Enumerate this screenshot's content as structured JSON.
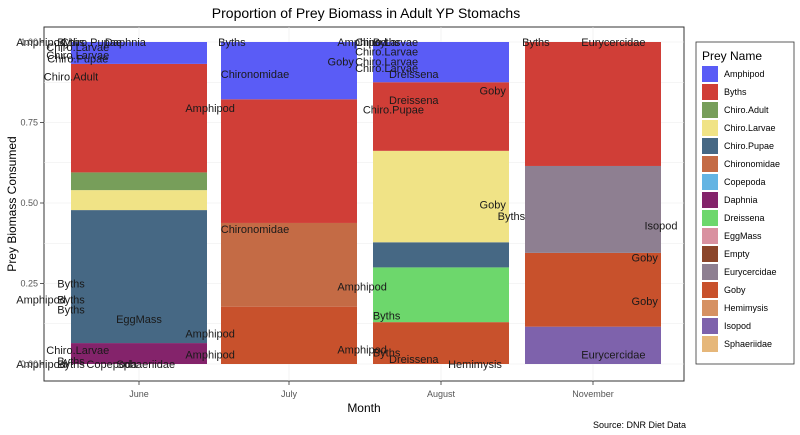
{
  "chart_data": {
    "type": "bar",
    "stacked": true,
    "title": "Proportion of Prey Biomass in Adult YP Stomachs",
    "xlabel": "Month",
    "ylabel": "Prey Biomass Consumed",
    "ylim": [
      0,
      1
    ],
    "yticks": [
      "0.00",
      "0.25",
      "0.50",
      "0.75",
      "1.00"
    ],
    "categories": [
      "June",
      "July",
      "August",
      "November"
    ],
    "legend_title": "Prey Name",
    "legend_position": "right",
    "caption": "Source: DNR Diet Data",
    "prey": [
      {
        "name": "Amphipod",
        "color": "#5A5CF6"
      },
      {
        "name": "Byths",
        "color": "#D03E37"
      },
      {
        "name": "Chiro.Adult",
        "color": "#779E5A"
      },
      {
        "name": "Chiro.Larvae",
        "color": "#F0E386"
      },
      {
        "name": "Chiro.Pupae",
        "color": "#466884"
      },
      {
        "name": "Chironomidae",
        "color": "#C46B45"
      },
      {
        "name": "Copepoda",
        "color": "#64B4E3"
      },
      {
        "name": "Daphnia",
        "color": "#84236B"
      },
      {
        "name": "Dreissena",
        "color": "#6DD76C"
      },
      {
        "name": "EggMass",
        "color": "#D991A0"
      },
      {
        "name": "Empty",
        "color": "#8B452A"
      },
      {
        "name": "Eurycercidae",
        "color": "#8E7F91"
      },
      {
        "name": "Goby",
        "color": "#C8512C"
      },
      {
        "name": "Hemimysis",
        "color": "#D69163"
      },
      {
        "name": "Isopod",
        "color": "#7E62AC"
      },
      {
        "name": "Sphaeriidae",
        "color": "#E6B77A"
      }
    ],
    "stacks": [
      {
        "month": "June",
        "segments": [
          {
            "prey": "Daphnia",
            "from": 0.0,
            "to": 0.065
          },
          {
            "prey": "Chiro.Pupae",
            "from": 0.065,
            "to": 0.478
          },
          {
            "prey": "Chiro.Larvae",
            "from": 0.478,
            "to": 0.54
          },
          {
            "prey": "Chiro.Adult",
            "from": 0.54,
            "to": 0.595
          },
          {
            "prey": "Byths",
            "from": 0.595,
            "to": 0.932
          },
          {
            "prey": "Amphipod",
            "from": 0.932,
            "to": 1.0
          }
        ]
      },
      {
        "month": "July",
        "segments": [
          {
            "prey": "Goby",
            "from": 0.0,
            "to": 0.178
          },
          {
            "prey": "Chironomidae",
            "from": 0.178,
            "to": 0.438
          },
          {
            "prey": "Byths",
            "from": 0.438,
            "to": 0.822
          },
          {
            "prey": "Amphipod",
            "from": 0.822,
            "to": 1.0
          }
        ]
      },
      {
        "month": "August",
        "segments": [
          {
            "prey": "Goby",
            "from": 0.0,
            "to": 0.13
          },
          {
            "prey": "Dreissena",
            "from": 0.13,
            "to": 0.3
          },
          {
            "prey": "Chiro.Pupae",
            "from": 0.3,
            "to": 0.378
          },
          {
            "prey": "Chiro.Larvae",
            "from": 0.378,
            "to": 0.662
          },
          {
            "prey": "Byths",
            "from": 0.662,
            "to": 0.875
          },
          {
            "prey": "Amphipod",
            "from": 0.875,
            "to": 1.0
          }
        ]
      },
      {
        "month": "November",
        "segments": [
          {
            "prey": "Isopod",
            "from": 0.0,
            "to": 0.116
          },
          {
            "prey": "Goby",
            "from": 0.116,
            "to": 0.345
          },
          {
            "prey": "Eurycercidae",
            "from": 0.345,
            "to": 0.615
          },
          {
            "prey": "Byths",
            "from": 0.615,
            "to": 1.0
          }
        ]
      }
    ],
    "annotations": [
      {
        "text": "Amphipod",
        "month": "June",
        "dx": -0.72,
        "y": 1.0
      },
      {
        "text": "Byths",
        "month": "June",
        "dx": -0.5,
        "y": 1.0
      },
      {
        "text": "Chiro.Pupae",
        "month": "June",
        "dx": -0.35,
        "y": 1.0
      },
      {
        "text": "Daphnia",
        "month": "June",
        "dx": -0.1,
        "y": 1.0
      },
      {
        "text": "Chiro.Larvae",
        "month": "June",
        "dx": -0.45,
        "y": 0.985
      },
      {
        "text": "Chiro.Larvae",
        "month": "June",
        "dx": -0.45,
        "y": 0.96
      },
      {
        "text": "Chiro.Pupae",
        "month": "June",
        "dx": -0.45,
        "y": 0.948
      },
      {
        "text": "Chiro.Adult",
        "month": "June",
        "dx": -0.5,
        "y": 0.893
      },
      {
        "text": "Byths",
        "month": "June",
        "dx": -0.5,
        "y": 0.25
      },
      {
        "text": "Amphipod",
        "month": "June",
        "dx": -0.72,
        "y": 0.2
      },
      {
        "text": "Byths",
        "month": "June",
        "dx": -0.5,
        "y": 0.2
      },
      {
        "text": "Byths",
        "month": "June",
        "dx": -0.5,
        "y": 0.17
      },
      {
        "text": "EggMass",
        "month": "June",
        "dx": 0.0,
        "y": 0.14
      },
      {
        "text": "Chiro.Larvae",
        "month": "June",
        "dx": -0.45,
        "y": 0.043
      },
      {
        "text": "Byths",
        "month": "June",
        "dx": -0.5,
        "y": 0.01
      },
      {
        "text": "Amphipod",
        "month": "June",
        "dx": -0.72,
        "y": 0.0
      },
      {
        "text": "Byths",
        "month": "June",
        "dx": -0.5,
        "y": 0.0
      },
      {
        "text": "Copepoda",
        "month": "June",
        "dx": -0.2,
        "y": 0.0
      },
      {
        "text": "Sphaeriidae",
        "month": "June",
        "dx": 0.05,
        "y": 0.0
      },
      {
        "text": "Byths",
        "month": "July",
        "dx": -0.42,
        "y": 1.0
      },
      {
        "text": "Goby",
        "month": "July",
        "dx": 0.38,
        "y": 0.94
      },
      {
        "text": "Chironomidae",
        "month": "July",
        "dx": -0.25,
        "y": 0.9
      },
      {
        "text": "Amphipod",
        "month": "July",
        "dx": -0.58,
        "y": 0.795
      },
      {
        "text": "Chironomidae",
        "month": "July",
        "dx": -0.25,
        "y": 0.42
      },
      {
        "text": "Amphipod",
        "month": "July",
        "dx": -0.58,
        "y": 0.095
      },
      {
        "text": "Amphipod",
        "month": "July",
        "dx": -0.58,
        "y": 0.03
      },
      {
        "text": "Amphipod",
        "month": "August",
        "dx": -0.58,
        "y": 1.0
      },
      {
        "text": "Byths",
        "month": "August",
        "dx": -0.4,
        "y": 1.0
      },
      {
        "text": "Chiro.Larvae",
        "month": "August",
        "dx": -0.4,
        "y": 1.0
      },
      {
        "text": "Chiro.Larvae",
        "month": "August",
        "dx": -0.4,
        "y": 0.97
      },
      {
        "text": "Chiro.Larvae",
        "month": "August",
        "dx": -0.4,
        "y": 0.94
      },
      {
        "text": "Chiro.Larvae",
        "month": "August",
        "dx": -0.4,
        "y": 0.92
      },
      {
        "text": "Dreissena",
        "month": "August",
        "dx": -0.2,
        "y": 0.9
      },
      {
        "text": "Goby",
        "month": "August",
        "dx": 0.38,
        "y": 0.85
      },
      {
        "text": "Dreissena",
        "month": "August",
        "dx": -0.2,
        "y": 0.82
      },
      {
        "text": "Chiro.Pupae",
        "month": "August",
        "dx": -0.35,
        "y": 0.79
      },
      {
        "text": "Goby",
        "month": "August",
        "dx": 0.38,
        "y": 0.495
      },
      {
        "text": "Amphipod",
        "month": "August",
        "dx": -0.58,
        "y": 0.24
      },
      {
        "text": "Byths",
        "month": "August",
        "dx": -0.4,
        "y": 0.15
      },
      {
        "text": "Amphipod",
        "month": "August",
        "dx": -0.58,
        "y": 0.045
      },
      {
        "text": "Byths",
        "month": "August",
        "dx": -0.4,
        "y": 0.035
      },
      {
        "text": "Dreissena",
        "month": "August",
        "dx": -0.2,
        "y": 0.015
      },
      {
        "text": "Hemimysis",
        "month": "August",
        "dx": 0.25,
        "y": 0.0
      },
      {
        "text": "Byths",
        "month": "November",
        "dx": -0.42,
        "y": 1.0
      },
      {
        "text": "Eurycercidae",
        "month": "November",
        "dx": 0.15,
        "y": 1.0
      },
      {
        "text": "Byths",
        "month": "November",
        "dx": -0.6,
        "y": 0.46
      },
      {
        "text": "Isopod",
        "month": "November",
        "dx": 0.5,
        "y": 0.43
      },
      {
        "text": "Goby",
        "month": "November",
        "dx": 0.38,
        "y": 0.33
      },
      {
        "text": "Goby",
        "month": "November",
        "dx": 0.38,
        "y": 0.195
      },
      {
        "text": "Eurycercidae",
        "month": "November",
        "dx": 0.15,
        "y": 0.03
      }
    ]
  }
}
